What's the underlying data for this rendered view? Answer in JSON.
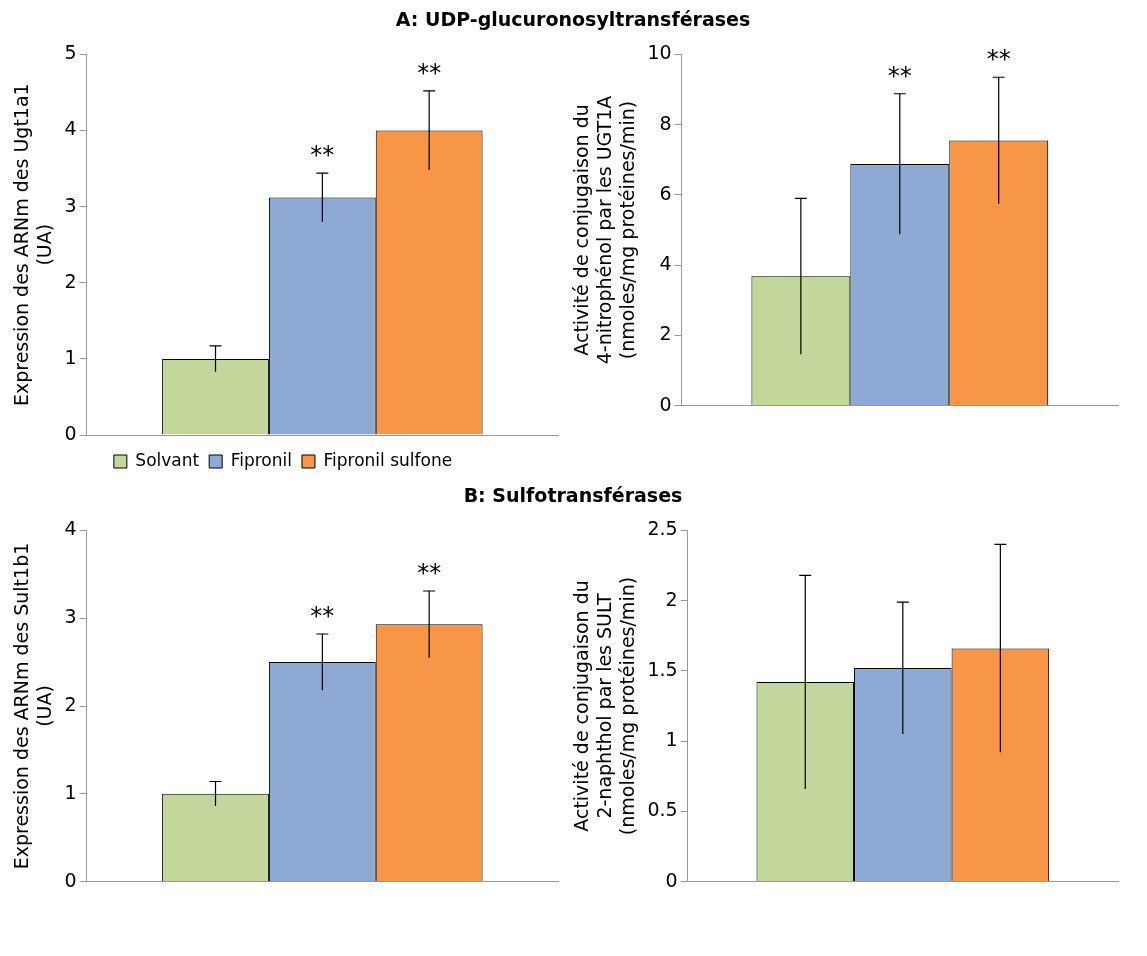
{
  "chart_data": [
    {
      "type": "bar",
      "title": "A: UDP-glucuronosyltransférases",
      "ylabel": "Expression des ARNm des Ugt1a1 (UA)",
      "categories": [
        null
      ],
      "series": [
        {
          "name": "Solvant",
          "color": "#c3d69b",
          "values": [
            1.0
          ],
          "errors": [
            0.17
          ]
        },
        {
          "name": "Fipronil",
          "color": "#8eaad4",
          "values": [
            3.12
          ],
          "errors": [
            0.32
          ]
        },
        {
          "name": "Fipronil sulfone",
          "color": "#f79646",
          "values": [
            4.0
          ],
          "errors": [
            0.52
          ]
        }
      ],
      "ylim": [
        0,
        5
      ],
      "yticks": [
        0,
        1,
        2,
        3,
        4,
        5
      ],
      "legend": "bottom",
      "annotations": [
        "**",
        "**"
      ]
    },
    {
      "type": "bar",
      "ylabel": "Activité de conjugaison du 4-nitrophénol par les UGT1A (nmoles/mg protéines/min)",
      "categories": [
        null
      ],
      "series": [
        {
          "color": "#c3d69b",
          "values": [
            3.68
          ],
          "errors": [
            2.22
          ]
        },
        {
          "color": "#8eaad4",
          "values": [
            6.88
          ],
          "errors": [
            2.0
          ]
        },
        {
          "color": "#f79646",
          "values": [
            7.55
          ],
          "errors": [
            1.8
          ]
        }
      ],
      "ylim": [
        0,
        10
      ],
      "yticks": [
        0,
        2,
        4,
        6,
        8,
        10
      ],
      "annotations": [
        "**",
        "**"
      ]
    },
    {
      "type": "bar",
      "title": "B: Sulfotransférases",
      "ylabel": "Expression des ARNm des Sult1b1 (UA)",
      "categories": [
        null
      ],
      "series": [
        {
          "color": "#c3d69b",
          "values": [
            1.0
          ],
          "errors": [
            0.14
          ]
        },
        {
          "color": "#8eaad4",
          "values": [
            2.5
          ],
          "errors": [
            0.32
          ]
        },
        {
          "color": "#f79646",
          "values": [
            2.93
          ],
          "errors": [
            0.38
          ]
        }
      ],
      "ylim": [
        0,
        4
      ],
      "yticks": [
        0,
        1,
        2,
        3,
        4
      ],
      "annotations": [
        "**",
        "**"
      ]
    },
    {
      "type": "bar",
      "ylabel": "Activité de conjugaison du 2-naphthol par les SULT (nmoles/mg protéines/min)",
      "categories": [
        null
      ],
      "series": [
        {
          "color": "#c3d69b",
          "values": [
            1.42
          ],
          "errors": [
            0.76
          ]
        },
        {
          "color": "#8eaad4",
          "values": [
            1.52
          ],
          "errors": [
            0.47
          ]
        },
        {
          "color": "#f79646",
          "values": [
            1.66
          ],
          "errors": [
            0.74
          ]
        }
      ],
      "ylim": [
        0,
        2.5
      ],
      "yticks": [
        0,
        0.5,
        1,
        1.5,
        2,
        2.5
      ]
    }
  ]
}
